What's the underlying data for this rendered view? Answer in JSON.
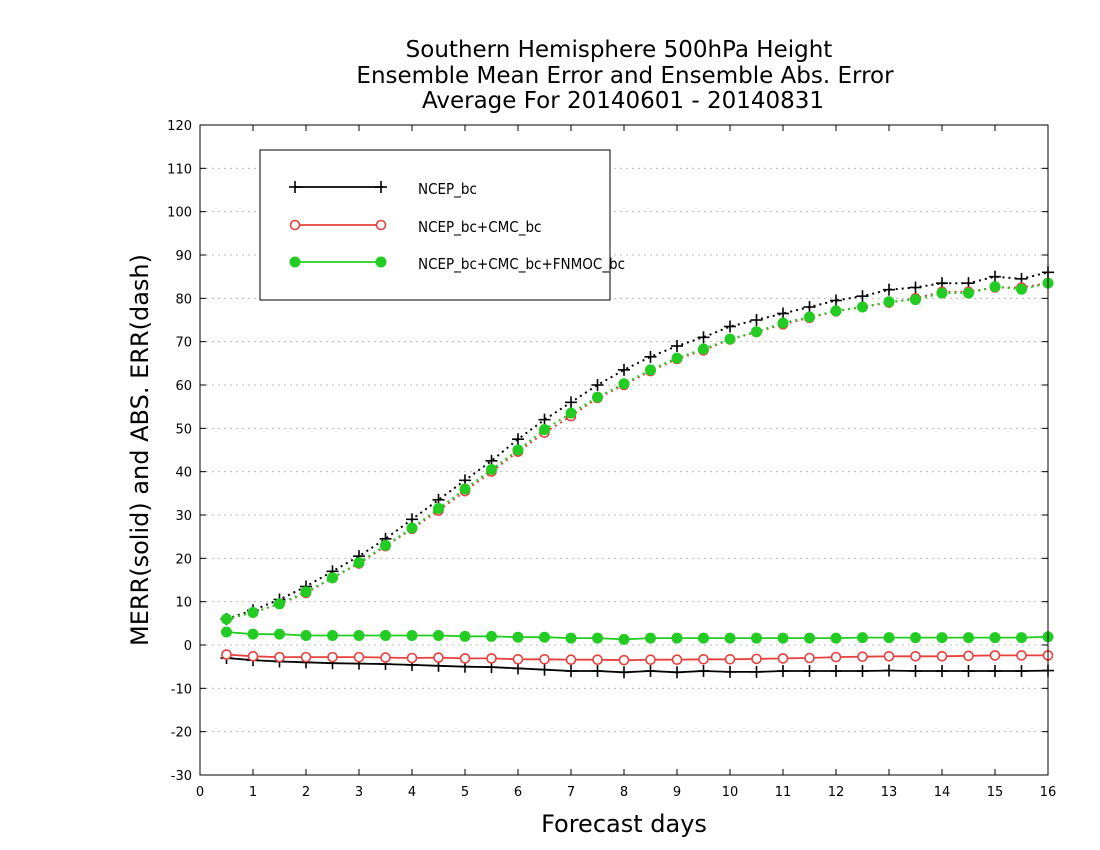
{
  "colors": {
    "NCEP_bc": "#000000",
    "NCEP_bc+CMC_bc": "#e8403c",
    "NCEP_bc+CMC_bc+FNMOC_bc": "#22cc22",
    "background": "#ffffff",
    "grid": "#bdbdbd"
  },
  "chart_data": {
    "type": "line",
    "title": "Southern Hemisphere 500hPa Height",
    "subtitle": "Ensemble Mean Error and Ensemble Abs. Error",
    "subtitle2": "Average For 20140601 - 20140831",
    "xlabel": "Forecast days",
    "ylabel": "MERR(solid) and ABS. ERR(dash)",
    "xlim": [
      0,
      16
    ],
    "ylim": [
      -30,
      120
    ],
    "xticks": [
      0,
      1,
      2,
      3,
      4,
      5,
      6,
      7,
      8,
      9,
      10,
      11,
      12,
      13,
      14,
      15,
      16
    ],
    "yticks": [
      -30,
      -20,
      -10,
      0,
      10,
      20,
      30,
      40,
      50,
      60,
      70,
      80,
      90,
      100,
      110,
      120
    ],
    "grid": true,
    "legend_position": "top-left",
    "x": [
      0.5,
      1,
      1.5,
      2,
      2.5,
      3,
      3.5,
      4,
      4.5,
      5,
      5.5,
      6,
      6.5,
      7,
      7.5,
      8,
      8.5,
      9,
      9.5,
      10,
      10.5,
      11,
      11.5,
      12,
      12.5,
      13,
      13.5,
      14,
      14.5,
      15,
      15.5,
      16
    ],
    "series": [
      {
        "name": "NCEP_bc",
        "marker": "plus",
        "merr": [
          -3,
          -3.5,
          -3.8,
          -4,
          -4.2,
          -4.3,
          -4.4,
          -4.6,
          -4.8,
          -5,
          -5.1,
          -5.4,
          -5.7,
          -6,
          -6,
          -6.3,
          -6,
          -6.3,
          -6,
          -6.2,
          -6.2,
          -6,
          -6,
          -6,
          -6,
          -5.9,
          -6,
          -6,
          -6,
          -6,
          -6,
          -5.9
        ],
        "abserr": [
          6,
          8,
          10.5,
          13.5,
          17,
          20.5,
          24.5,
          29,
          33.5,
          38,
          42.5,
          47.5,
          52,
          56,
          60,
          63.5,
          66.5,
          69,
          71,
          73.5,
          75,
          76.5,
          78,
          79.5,
          80.5,
          82,
          82.5,
          83.5,
          83.5,
          85,
          84.5,
          86
        ]
      },
      {
        "name": "NCEP_bc+CMC_bc",
        "marker": "open-circle",
        "merr": [
          -2.2,
          -2.6,
          -2.8,
          -2.8,
          -2.8,
          -2.8,
          -2.9,
          -3,
          -2.9,
          -3.1,
          -3.1,
          -3.3,
          -3.3,
          -3.4,
          -3.4,
          -3.5,
          -3.4,
          -3.4,
          -3.3,
          -3.3,
          -3.2,
          -3.1,
          -3,
          -2.8,
          -2.7,
          -2.6,
          -2.6,
          -2.6,
          -2.5,
          -2.4,
          -2.4,
          -2.4
        ],
        "abserr": [
          6,
          7.5,
          9.5,
          12,
          15.5,
          18.8,
          22.8,
          26.8,
          31,
          35.5,
          40,
          44.6,
          49,
          52.8,
          57,
          60,
          63.2,
          66,
          68,
          70.5,
          72.2,
          74,
          75.5,
          77,
          78,
          79,
          80,
          81.5,
          81.5,
          82.5,
          82.5,
          83.5
        ]
      },
      {
        "name": "NCEP_bc+CMC_bc+FNMOC_bc",
        "marker": "filled-circle",
        "merr": [
          3,
          2.5,
          2.5,
          2.2,
          2.2,
          2.2,
          2.2,
          2.2,
          2.2,
          2,
          2,
          1.8,
          1.8,
          1.6,
          1.6,
          1.3,
          1.6,
          1.6,
          1.6,
          1.6,
          1.6,
          1.6,
          1.6,
          1.6,
          1.7,
          1.7,
          1.7,
          1.7,
          1.7,
          1.7,
          1.7,
          1.9
        ],
        "abserr": [
          6,
          7.5,
          9.5,
          12.3,
          15.5,
          19,
          23,
          27,
          31.5,
          36,
          40.5,
          45,
          49.7,
          53.5,
          57.2,
          60.3,
          63.5,
          66.2,
          68.3,
          70.6,
          72.3,
          74.3,
          75.7,
          77.1,
          78,
          79.2,
          79.7,
          81.2,
          81.2,
          82.7,
          82.1,
          83.5
        ]
      }
    ]
  }
}
